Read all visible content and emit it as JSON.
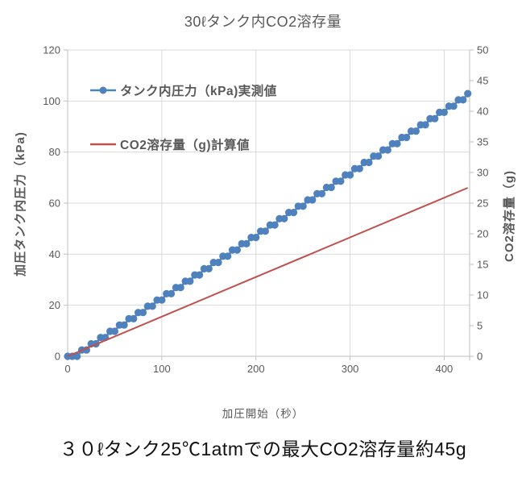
{
  "caption": "３０ℓタンク25℃1atmでの最大CO2溶存量約45g",
  "colors": {
    "pressure_series": "#4F81BD",
    "co2_series": "#C0504D",
    "gridline": "#D9D9D9",
    "axis_line": "#BFBFBF",
    "tick_text": "#595959"
  },
  "chart_data": {
    "type": "line",
    "title": "30ℓタンク内CO2溶存量",
    "xlabel": "加圧開始（秒）",
    "ylabel_left": "加圧タンク内圧力（kPa)",
    "ylabel_right": "CO2溶存量（g)",
    "x_range": [
      0,
      427
    ],
    "x_ticks": [
      0,
      100,
      200,
      300,
      400
    ],
    "y_left_range": [
      0,
      120
    ],
    "y_left_ticks": [
      0,
      20,
      40,
      60,
      80,
      100,
      120
    ],
    "y_right_range": [
      0,
      50
    ],
    "y_right_ticks": [
      0,
      5,
      10,
      15,
      20,
      25,
      30,
      35,
      40,
      45,
      50
    ],
    "grid": true,
    "legend_position": "inside-top-left",
    "series": [
      {
        "name": "タンク内圧力（kPa)実測値",
        "axis": "left",
        "style": "line-with-markers",
        "color": "#4F81BD",
        "x_start": 0,
        "x_step": 5,
        "values": [
          0,
          0,
          0,
          2.45,
          2.45,
          4.9,
          4.9,
          7.35,
          7.35,
          9.8,
          9.8,
          12.25,
          12.25,
          14.7,
          14.7,
          17.15,
          17.15,
          19.6,
          19.6,
          22.05,
          22.05,
          24.5,
          24.5,
          26.95,
          26.95,
          29.4,
          29.4,
          31.85,
          31.85,
          34.3,
          34.3,
          36.75,
          36.75,
          39.2,
          39.2,
          41.65,
          41.65,
          44.1,
          44.1,
          46.55,
          46.55,
          49,
          49,
          51.45,
          51.45,
          53.9,
          53.9,
          56.35,
          56.35,
          58.8,
          58.8,
          61.25,
          61.25,
          63.7,
          63.7,
          66.15,
          66.15,
          68.6,
          68.6,
          71.05,
          71.05,
          73.5,
          73.5,
          75.95,
          75.95,
          78.4,
          78.4,
          80.85,
          80.85,
          83.3,
          83.3,
          85.75,
          85.75,
          88.2,
          88.2,
          90.65,
          90.65,
          93.1,
          93.1,
          95.55,
          95.55,
          98,
          98,
          100.45,
          100.45,
          102.9
        ]
      },
      {
        "name": "CO2溶存量（g)計算値",
        "axis": "right",
        "style": "line",
        "color": "#C0504D",
        "points": [
          [
            0,
            0
          ],
          [
            425,
            27.5
          ]
        ]
      }
    ]
  }
}
